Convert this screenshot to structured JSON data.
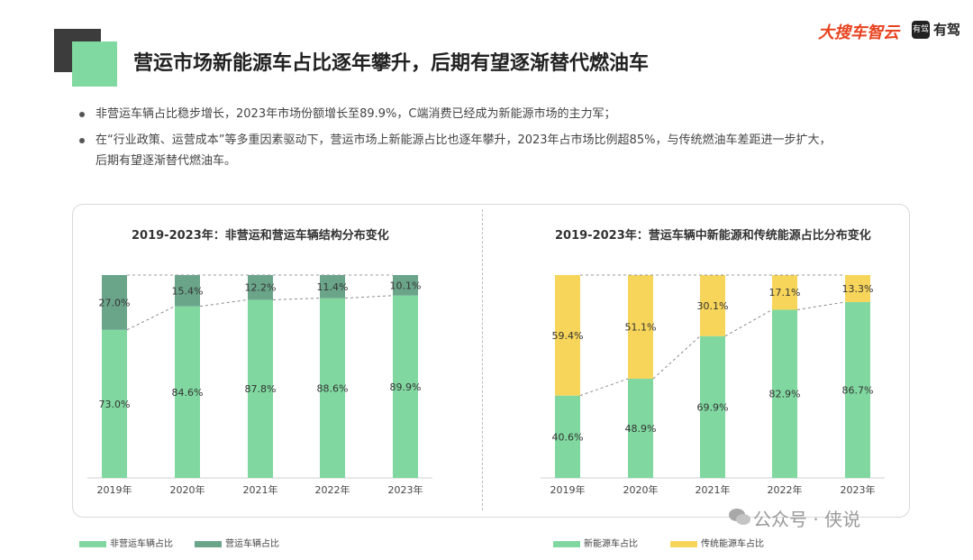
{
  "header": {
    "title": "营运市场新能源车占比逐年攀升，后期有望逐渐替代燃油车",
    "brand": "大搜车智云",
    "brand2_icon": "有驾",
    "brand2": "有驾"
  },
  "bullets": [
    "非营运车辆占比稳步增长，2023年市场份额增长至89.9%，C端消费已经成为新能源市场的主力军；",
    "在“行业政策、运营成本”等多重因素驱动下，营运市场上新能源占比也逐年攀升，2023年占市场比例超85%，与传统燃油车差距进一步扩大，",
    "后期有望逐渐替代燃油车。"
  ],
  "watermark": "公众号 · 侠说",
  "colors": {
    "green": "#80d8a0",
    "dark_green": "#6aa58a",
    "yellow": "#f7d55a",
    "accent": "#7fd9a0"
  },
  "chart_data": [
    {
      "type": "bar",
      "stacked": true,
      "title": "2019-2023年：非营运和营运车辆结构分布变化",
      "categories": [
        "2019年",
        "2020年",
        "2021年",
        "2022年",
        "2023年"
      ],
      "series": [
        {
          "name": "非营运车辆占比",
          "values": [
            73.0,
            84.6,
            87.8,
            88.6,
            89.9
          ],
          "color": "#80d8a0"
        },
        {
          "name": "营运车辆占比",
          "values": [
            27.0,
            15.4,
            12.2,
            11.4,
            10.1
          ],
          "color": "#6aa58a"
        }
      ],
      "value_labels": {
        "bottom": [
          "73.0%",
          "84.6%",
          "87.8%",
          "88.6%",
          "89.9%"
        ],
        "top": [
          "27.0%",
          "15.4%",
          "12.2%",
          "11.4%",
          "10.1%"
        ]
      },
      "ylim": [
        0,
        100
      ],
      "legend": "bottom-left"
    },
    {
      "type": "bar",
      "stacked": true,
      "title": "2019-2023年：营运车辆中新能源和传统能源占比分布变化",
      "categories": [
        "2019年",
        "2020年",
        "2021年",
        "2022年",
        "2023年"
      ],
      "series": [
        {
          "name": "新能源车占比",
          "values": [
            40.6,
            48.9,
            69.9,
            82.9,
            86.7
          ],
          "color": "#80d8a0"
        },
        {
          "name": "传统能源车占比",
          "values": [
            59.4,
            51.1,
            30.1,
            17.1,
            13.3
          ],
          "color": "#f7d55a"
        }
      ],
      "value_labels": {
        "bottom": [
          "40.6%",
          "48.9%",
          "69.9%",
          "82.9%",
          "86.7%"
        ],
        "top": [
          "59.4%",
          "51.1%",
          "30.1%",
          "17.1%",
          "13.3%"
        ]
      },
      "ylim": [
        0,
        100
      ],
      "legend": "bottom-center"
    }
  ]
}
